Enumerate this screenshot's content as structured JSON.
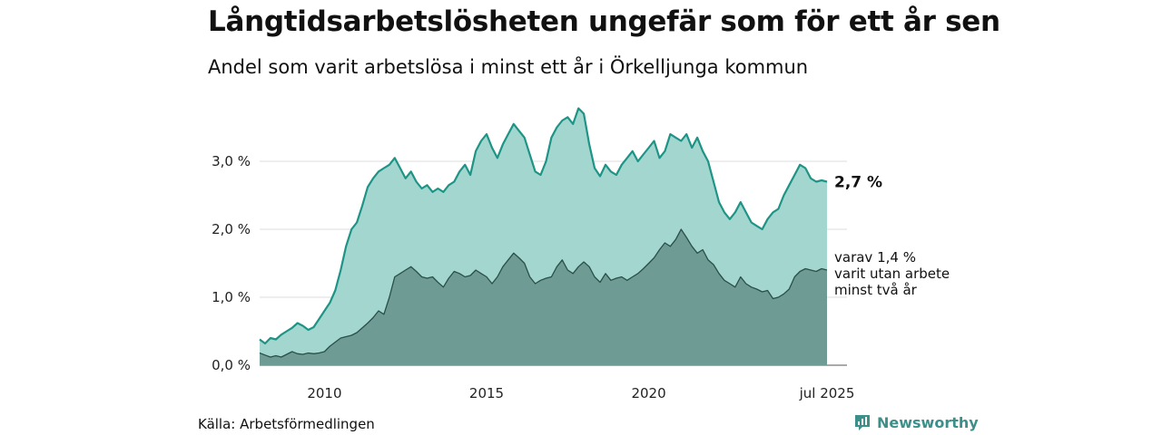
{
  "title": "Långtidsarbetslösheten ungefär som för ett år sen",
  "subtitle": "Andel som varit arbetslösa i minst ett år i Örkelljunga kommun",
  "source": "Källa: Arbetsförmedlingen",
  "brand": {
    "name": "Newsworthy",
    "color": "#3d8f8a"
  },
  "chart_data": {
    "type": "area",
    "title": "Långtidsarbetslösheten ungefär som för ett år sen",
    "subtitle": "Andel som varit arbetslösa i minst ett år i Örkelljunga kommun",
    "x_range": [
      "2008-01",
      "2025-07"
    ],
    "y_range": [
      0,
      3.9
    ],
    "y_ticks": [
      {
        "value": 0,
        "label": "0,0 %"
      },
      {
        "value": 1,
        "label": "1,0 %"
      },
      {
        "value": 2,
        "label": "2,0 %"
      },
      {
        "value": 3,
        "label": "3,0 %"
      }
    ],
    "x_ticks": [
      {
        "value": "2010-01",
        "label": "2010"
      },
      {
        "value": "2015-01",
        "label": "2015"
      },
      {
        "value": "2020-01",
        "label": "2020"
      },
      {
        "value": "2025-07",
        "label": "jul 2025"
      }
    ],
    "grid": true,
    "legend": "none",
    "series": [
      {
        "key": "min1",
        "color": "#1e9486",
        "fill": "#a3d6cf",
        "end_label": "2,7 %",
        "points": [
          [
            "2008-01",
            0.38
          ],
          [
            "2008-03",
            0.32
          ],
          [
            "2008-05",
            0.4
          ],
          [
            "2008-07",
            0.38
          ],
          [
            "2008-09",
            0.45
          ],
          [
            "2008-11",
            0.5
          ],
          [
            "2009-01",
            0.55
          ],
          [
            "2009-03",
            0.62
          ],
          [
            "2009-05",
            0.58
          ],
          [
            "2009-07",
            0.52
          ],
          [
            "2009-09",
            0.56
          ],
          [
            "2009-11",
            0.68
          ],
          [
            "2010-01",
            0.8
          ],
          [
            "2010-03",
            0.92
          ],
          [
            "2010-05",
            1.1
          ],
          [
            "2010-07",
            1.4
          ],
          [
            "2010-09",
            1.75
          ],
          [
            "2010-11",
            2.0
          ],
          [
            "2011-01",
            2.1
          ],
          [
            "2011-03",
            2.35
          ],
          [
            "2011-05",
            2.62
          ],
          [
            "2011-07",
            2.75
          ],
          [
            "2011-09",
            2.85
          ],
          [
            "2011-11",
            2.9
          ],
          [
            "2012-01",
            2.95
          ],
          [
            "2012-03",
            3.05
          ],
          [
            "2012-05",
            2.9
          ],
          [
            "2012-07",
            2.75
          ],
          [
            "2012-09",
            2.85
          ],
          [
            "2012-11",
            2.7
          ],
          [
            "2013-01",
            2.6
          ],
          [
            "2013-03",
            2.65
          ],
          [
            "2013-05",
            2.55
          ],
          [
            "2013-07",
            2.6
          ],
          [
            "2013-09",
            2.55
          ],
          [
            "2013-11",
            2.65
          ],
          [
            "2014-01",
            2.7
          ],
          [
            "2014-03",
            2.85
          ],
          [
            "2014-05",
            2.95
          ],
          [
            "2014-07",
            2.8
          ],
          [
            "2014-09",
            3.15
          ],
          [
            "2014-11",
            3.3
          ],
          [
            "2015-01",
            3.4
          ],
          [
            "2015-03",
            3.2
          ],
          [
            "2015-05",
            3.05
          ],
          [
            "2015-07",
            3.25
          ],
          [
            "2015-09",
            3.4
          ],
          [
            "2015-11",
            3.55
          ],
          [
            "2016-01",
            3.45
          ],
          [
            "2016-03",
            3.35
          ],
          [
            "2016-05",
            3.1
          ],
          [
            "2016-07",
            2.85
          ],
          [
            "2016-09",
            2.8
          ],
          [
            "2016-11",
            3.0
          ],
          [
            "2017-01",
            3.35
          ],
          [
            "2017-03",
            3.5
          ],
          [
            "2017-05",
            3.6
          ],
          [
            "2017-07",
            3.65
          ],
          [
            "2017-09",
            3.55
          ],
          [
            "2017-11",
            3.78
          ],
          [
            "2018-01",
            3.7
          ],
          [
            "2018-03",
            3.25
          ],
          [
            "2018-05",
            2.9
          ],
          [
            "2018-07",
            2.78
          ],
          [
            "2018-09",
            2.95
          ],
          [
            "2018-11",
            2.85
          ],
          [
            "2019-01",
            2.8
          ],
          [
            "2019-03",
            2.95
          ],
          [
            "2019-05",
            3.05
          ],
          [
            "2019-07",
            3.15
          ],
          [
            "2019-09",
            3.0
          ],
          [
            "2019-11",
            3.1
          ],
          [
            "2020-01",
            3.2
          ],
          [
            "2020-03",
            3.3
          ],
          [
            "2020-05",
            3.05
          ],
          [
            "2020-07",
            3.15
          ],
          [
            "2020-09",
            3.4
          ],
          [
            "2020-11",
            3.35
          ],
          [
            "2021-01",
            3.3
          ],
          [
            "2021-03",
            3.4
          ],
          [
            "2021-05",
            3.2
          ],
          [
            "2021-07",
            3.35
          ],
          [
            "2021-09",
            3.15
          ],
          [
            "2021-11",
            3.0
          ],
          [
            "2022-01",
            2.7
          ],
          [
            "2022-03",
            2.4
          ],
          [
            "2022-05",
            2.25
          ],
          [
            "2022-07",
            2.15
          ],
          [
            "2022-09",
            2.25
          ],
          [
            "2022-11",
            2.4
          ],
          [
            "2023-01",
            2.25
          ],
          [
            "2023-03",
            2.1
          ],
          [
            "2023-05",
            2.05
          ],
          [
            "2023-07",
            2.0
          ],
          [
            "2023-09",
            2.15
          ],
          [
            "2023-11",
            2.25
          ],
          [
            "2024-01",
            2.3
          ],
          [
            "2024-03",
            2.5
          ],
          [
            "2024-05",
            2.65
          ],
          [
            "2024-07",
            2.8
          ],
          [
            "2024-09",
            2.95
          ],
          [
            "2024-11",
            2.9
          ],
          [
            "2025-01",
            2.75
          ],
          [
            "2025-03",
            2.7
          ],
          [
            "2025-05",
            2.72
          ],
          [
            "2025-07",
            2.7
          ]
        ]
      },
      {
        "key": "min2",
        "color": "#2a4f49",
        "fill": "#6f9b95",
        "end_label_lines": [
          "varav 1,4 %",
          "varit utan arbete",
          "minst två år"
        ],
        "points": [
          [
            "2008-01",
            0.18
          ],
          [
            "2008-03",
            0.15
          ],
          [
            "2008-05",
            0.12
          ],
          [
            "2008-07",
            0.14
          ],
          [
            "2008-09",
            0.12
          ],
          [
            "2008-11",
            0.16
          ],
          [
            "2009-01",
            0.2
          ],
          [
            "2009-03",
            0.17
          ],
          [
            "2009-05",
            0.16
          ],
          [
            "2009-07",
            0.18
          ],
          [
            "2009-09",
            0.17
          ],
          [
            "2009-11",
            0.18
          ],
          [
            "2010-01",
            0.2
          ],
          [
            "2010-03",
            0.28
          ],
          [
            "2010-05",
            0.34
          ],
          [
            "2010-07",
            0.4
          ],
          [
            "2010-09",
            0.42
          ],
          [
            "2010-11",
            0.44
          ],
          [
            "2011-01",
            0.48
          ],
          [
            "2011-03",
            0.55
          ],
          [
            "2011-05",
            0.62
          ],
          [
            "2011-07",
            0.7
          ],
          [
            "2011-09",
            0.8
          ],
          [
            "2011-11",
            0.75
          ],
          [
            "2012-01",
            1.0
          ],
          [
            "2012-03",
            1.3
          ],
          [
            "2012-05",
            1.35
          ],
          [
            "2012-07",
            1.4
          ],
          [
            "2012-09",
            1.45
          ],
          [
            "2012-11",
            1.38
          ],
          [
            "2013-01",
            1.3
          ],
          [
            "2013-03",
            1.28
          ],
          [
            "2013-05",
            1.3
          ],
          [
            "2013-07",
            1.22
          ],
          [
            "2013-09",
            1.15
          ],
          [
            "2013-11",
            1.28
          ],
          [
            "2014-01",
            1.38
          ],
          [
            "2014-03",
            1.35
          ],
          [
            "2014-05",
            1.3
          ],
          [
            "2014-07",
            1.32
          ],
          [
            "2014-09",
            1.4
          ],
          [
            "2014-11",
            1.35
          ],
          [
            "2015-01",
            1.3
          ],
          [
            "2015-03",
            1.2
          ],
          [
            "2015-05",
            1.3
          ],
          [
            "2015-07",
            1.45
          ],
          [
            "2015-09",
            1.55
          ],
          [
            "2015-11",
            1.65
          ],
          [
            "2016-01",
            1.58
          ],
          [
            "2016-03",
            1.5
          ],
          [
            "2016-05",
            1.3
          ],
          [
            "2016-07",
            1.2
          ],
          [
            "2016-09",
            1.25
          ],
          [
            "2016-11",
            1.28
          ],
          [
            "2017-01",
            1.3
          ],
          [
            "2017-03",
            1.45
          ],
          [
            "2017-05",
            1.55
          ],
          [
            "2017-07",
            1.4
          ],
          [
            "2017-09",
            1.35
          ],
          [
            "2017-11",
            1.45
          ],
          [
            "2018-01",
            1.52
          ],
          [
            "2018-03",
            1.45
          ],
          [
            "2018-05",
            1.3
          ],
          [
            "2018-07",
            1.22
          ],
          [
            "2018-09",
            1.35
          ],
          [
            "2018-11",
            1.25
          ],
          [
            "2019-01",
            1.28
          ],
          [
            "2019-03",
            1.3
          ],
          [
            "2019-05",
            1.25
          ],
          [
            "2019-07",
            1.3
          ],
          [
            "2019-09",
            1.35
          ],
          [
            "2019-11",
            1.42
          ],
          [
            "2020-01",
            1.5
          ],
          [
            "2020-03",
            1.58
          ],
          [
            "2020-05",
            1.7
          ],
          [
            "2020-07",
            1.8
          ],
          [
            "2020-09",
            1.75
          ],
          [
            "2020-11",
            1.85
          ],
          [
            "2021-01",
            2.0
          ],
          [
            "2021-03",
            1.88
          ],
          [
            "2021-05",
            1.75
          ],
          [
            "2021-07",
            1.65
          ],
          [
            "2021-09",
            1.7
          ],
          [
            "2021-11",
            1.55
          ],
          [
            "2022-01",
            1.48
          ],
          [
            "2022-03",
            1.35
          ],
          [
            "2022-05",
            1.25
          ],
          [
            "2022-07",
            1.2
          ],
          [
            "2022-09",
            1.15
          ],
          [
            "2022-11",
            1.3
          ],
          [
            "2023-01",
            1.2
          ],
          [
            "2023-03",
            1.15
          ],
          [
            "2023-05",
            1.12
          ],
          [
            "2023-07",
            1.08
          ],
          [
            "2023-09",
            1.1
          ],
          [
            "2023-11",
            0.98
          ],
          [
            "2024-01",
            1.0
          ],
          [
            "2024-03",
            1.05
          ],
          [
            "2024-05",
            1.12
          ],
          [
            "2024-07",
            1.3
          ],
          [
            "2024-09",
            1.38
          ],
          [
            "2024-11",
            1.42
          ],
          [
            "2025-01",
            1.4
          ],
          [
            "2025-03",
            1.38
          ],
          [
            "2025-05",
            1.42
          ],
          [
            "2025-07",
            1.4
          ]
        ]
      }
    ]
  }
}
